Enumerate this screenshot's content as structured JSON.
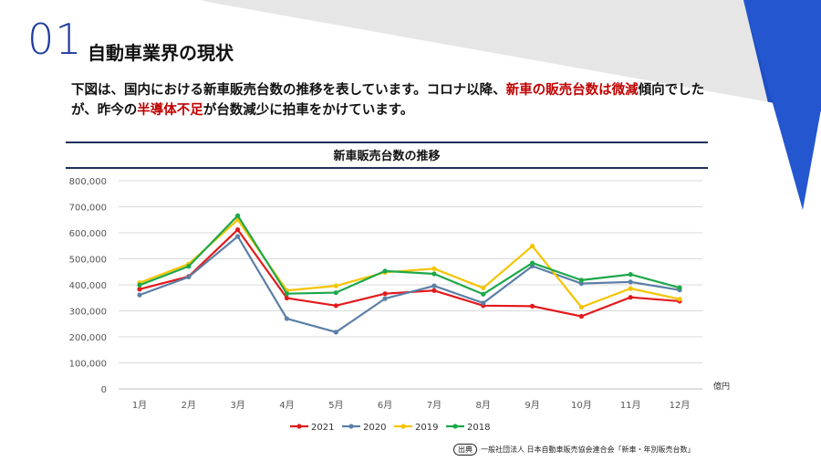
{
  "slide": {
    "number": "01",
    "title": "自動車業界の現状",
    "lead": [
      {
        "text": "下図は、国内における新車販売台数の推移を表しています。コロナ以降、",
        "highlight": false
      },
      {
        "text": "新車の販売台数は微減",
        "highlight": true
      },
      {
        "text": "傾向でしたが、昨今の",
        "highlight": false
      },
      {
        "text": "半導体不足",
        "highlight": true
      },
      {
        "text": "が台数減少に拍車をかけています。",
        "highlight": false
      }
    ],
    "source_tag": "出典",
    "source_text": "一般社団法人 日本自動車販売協会連合会「新車・年別販売台数」"
  },
  "colors": {
    "accent_blue": "#1f3a9e",
    "highlight_red": "#c00000"
  },
  "chart_data": {
    "type": "line",
    "title": "新車販売台数の推移",
    "unit_label": "億円",
    "categories": [
      "1月",
      "2月",
      "3月",
      "4月",
      "5月",
      "6月",
      "7月",
      "8月",
      "9月",
      "10月",
      "11月",
      "12月"
    ],
    "ylim": [
      0,
      800000
    ],
    "yticks": [
      0,
      100000,
      200000,
      300000,
      400000,
      500000,
      600000,
      700000,
      800000
    ],
    "grid": true,
    "legend_position": "bottom",
    "series": [
      {
        "name": "2021",
        "color": "#e31a1c",
        "values": [
          383000,
          432000,
          612000,
          349000,
          320000,
          366000,
          378000,
          320000,
          318000,
          279000,
          352000,
          337000
        ]
      },
      {
        "name": "2020",
        "color": "#5b7fa6",
        "values": [
          361000,
          430000,
          586000,
          270000,
          218000,
          347000,
          396000,
          330000,
          472000,
          405000,
          411000,
          380000
        ]
      },
      {
        "name": "2019",
        "color": "#f5c400",
        "values": [
          408000,
          480000,
          650000,
          378000,
          396000,
          448000,
          462000,
          388000,
          549000,
          314000,
          386000,
          345000
        ]
      },
      {
        "name": "2018",
        "color": "#1ea84a",
        "values": [
          399000,
          471000,
          666000,
          366000,
          370000,
          453000,
          442000,
          364000,
          484000,
          418000,
          440000,
          389000
        ]
      }
    ]
  }
}
